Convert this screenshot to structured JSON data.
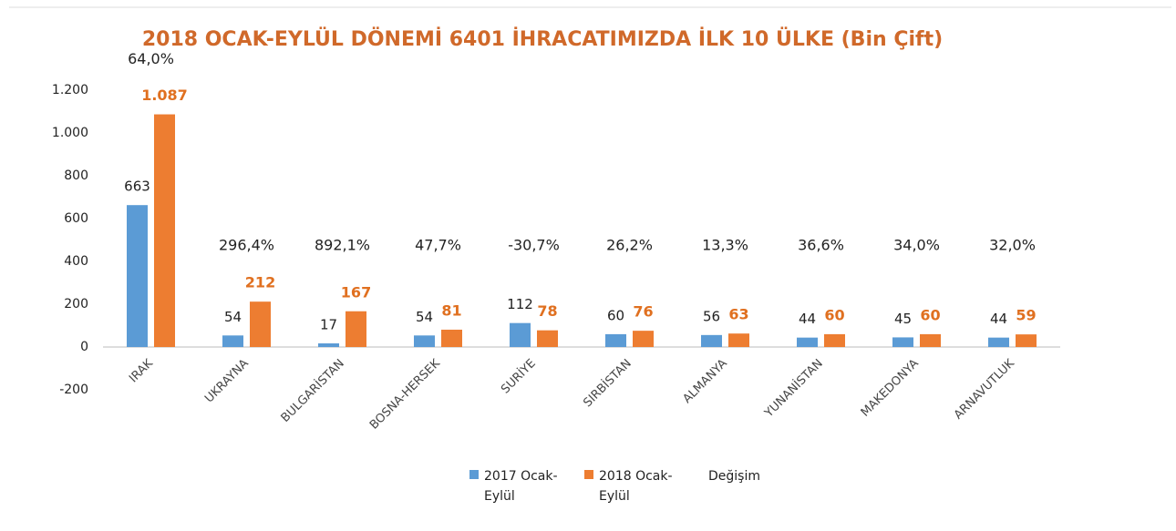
{
  "chart_data": {
    "type": "bar",
    "title": "2018 OCAK-EYLÜL DÖNEMİ 6401 İHRACATIMIZDA İLK  10 ÜLKE (Bin Çift)",
    "categories": [
      "IRAK",
      "UKRAYNA",
      "BULGARİSTAN",
      "BOSNA-HERSEK",
      "SURİYE",
      "SIRBİSTAN",
      "ALMANYA",
      "YUNANİSTAN",
      "MAKEDONYA",
      "ARNAVUTLUK"
    ],
    "series": [
      {
        "name": "2017 Ocak-Eylül",
        "color": "#5b9bd5",
        "values": [
          663,
          54,
          17,
          54,
          112,
          60,
          56,
          44,
          45,
          44
        ]
      },
      {
        "name": "2018 Ocak-Eylül",
        "color": "#ed7d31",
        "values": [
          1087,
          212,
          167,
          81,
          78,
          76,
          63,
          60,
          60,
          59
        ],
        "value_labels": [
          "1.087",
          "212",
          "167",
          "81",
          "78",
          "76",
          "63",
          "60",
          "60",
          "59"
        ]
      },
      {
        "name": "Değişim",
        "values": [
          64.0,
          296.4,
          892.1,
          47.7,
          -30.7,
          26.2,
          13.3,
          36.6,
          34.0,
          32.0
        ],
        "value_labels": [
          "64,0%",
          "296,4%",
          "892,1%",
          "47,7%",
          "-30,7%",
          "26,2%",
          "13,3%",
          "36,6%",
          "34,0%",
          "32,0%"
        ]
      }
    ],
    "ylim": [
      -200,
      1200
    ],
    "yticks": [
      -200,
      0,
      200,
      400,
      600,
      800,
      {
        "value": 1000,
        "label": "1.000"
      },
      {
        "value": 1200,
        "label": "1.200"
      }
    ]
  }
}
